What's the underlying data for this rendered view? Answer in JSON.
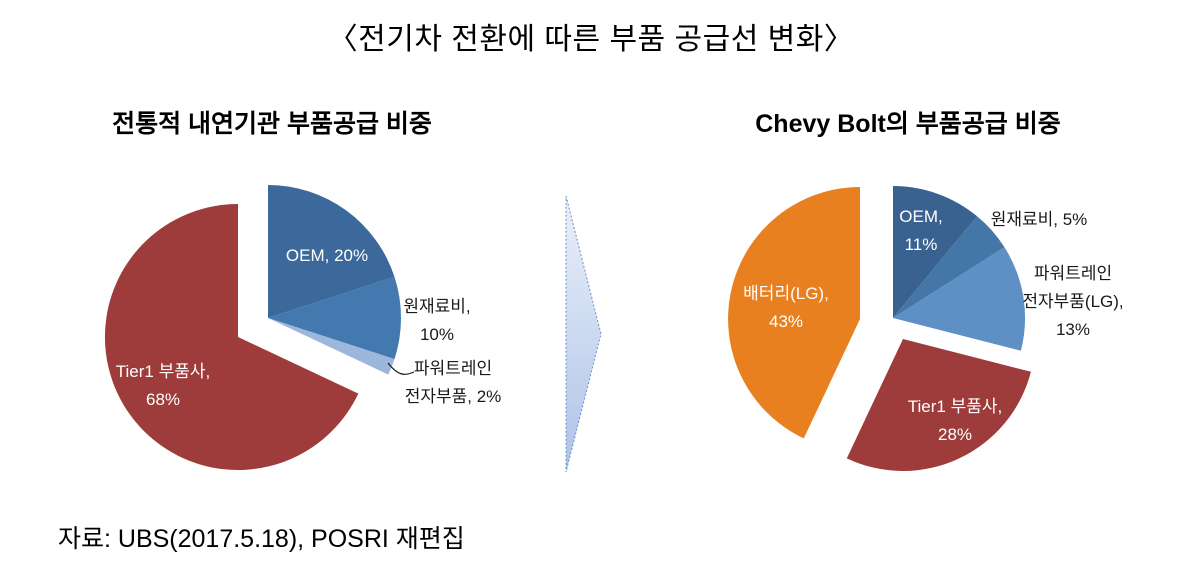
{
  "title": "〈전기차 전환에 따른 부품 공급선 변화〉",
  "source": "자료: UBS(2017.5.18), POSRI 재편집",
  "arrow": {
    "name": "transition-arrow",
    "fill_top": "#EAF0FA",
    "fill_bottom": "#AEC2E7",
    "border_color": "#6E8FC9"
  },
  "chart_data": [
    {
      "type": "pie",
      "id": "ice",
      "title": "전통적 내연기관 부품공급 비중",
      "unit": "%",
      "start_angle_deg": 0,
      "direction": "clockwise",
      "legend": "none",
      "slices": [
        {
          "key": "oem",
          "label": "OEM",
          "value": 20,
          "color": "#3B699C",
          "label_lines": [
            "OEM, 20%"
          ],
          "label_color": "#FFFFFF",
          "label_position": "inside"
        },
        {
          "key": "raw-materials",
          "label": "원재료비",
          "value": 10,
          "color": "#4379AE",
          "label_lines": [
            "원재료비,",
            "10%"
          ],
          "label_color": "#1A1A1A",
          "label_position": "outside"
        },
        {
          "key": "powertrain-electronics",
          "label": "파워트레인 전자부품",
          "value": 2,
          "color": "#9CB6DC",
          "label_lines": [
            "파워트레인",
            "전자부품, 2%"
          ],
          "label_color": "#1A1A1A",
          "label_position": "outside",
          "leader_line": true
        },
        {
          "key": "tier1-suppliers",
          "label": "Tier1 부품사",
          "value": 68,
          "color": "#9E3B3B",
          "label_lines": [
            "Tier1 부품사,",
            "68%"
          ],
          "label_color": "#FFFFFF",
          "label_position": "inside",
          "exploded": true
        }
      ]
    },
    {
      "type": "pie",
      "id": "chevy-bolt",
      "title": "Chevy Bolt의 부품공급 비중",
      "unit": "%",
      "start_angle_deg": 0,
      "direction": "clockwise",
      "legend": "none",
      "slices": [
        {
          "key": "oem",
          "label": "OEM",
          "value": 11,
          "color": "#3A6291",
          "label_lines": [
            "OEM,",
            "11%"
          ],
          "label_color": "#FFFFFF",
          "label_position": "inside"
        },
        {
          "key": "raw-materials",
          "label": "원재료비",
          "value": 5,
          "color": "#4477A8",
          "label_lines": [
            "원재료비, 5%"
          ],
          "label_color": "#1A1A1A",
          "label_position": "outside"
        },
        {
          "key": "powertrain-electronics-lg",
          "label": "파워트레인 전자부품(LG)",
          "value": 13,
          "color": "#5E90C5",
          "label_lines": [
            "파워트레인",
            "전자부품(LG),",
            "13%"
          ],
          "label_color": "#1A1A1A",
          "label_position": "outside"
        },
        {
          "key": "tier1-suppliers",
          "label": "Tier1 부품사",
          "value": 28,
          "color": "#9E3B3B",
          "label_lines": [
            "Tier1 부품사,",
            "28%"
          ],
          "label_color": "#FFFFFF",
          "label_position": "inside",
          "exploded": true
        },
        {
          "key": "battery-lg",
          "label": "배터리(LG)",
          "value": 43,
          "color": "#E8801F",
          "label_lines": [
            "배터리(LG),",
            "43%"
          ],
          "label_color": "#FFFFFF",
          "label_position": "inside",
          "exploded": true
        }
      ]
    }
  ]
}
